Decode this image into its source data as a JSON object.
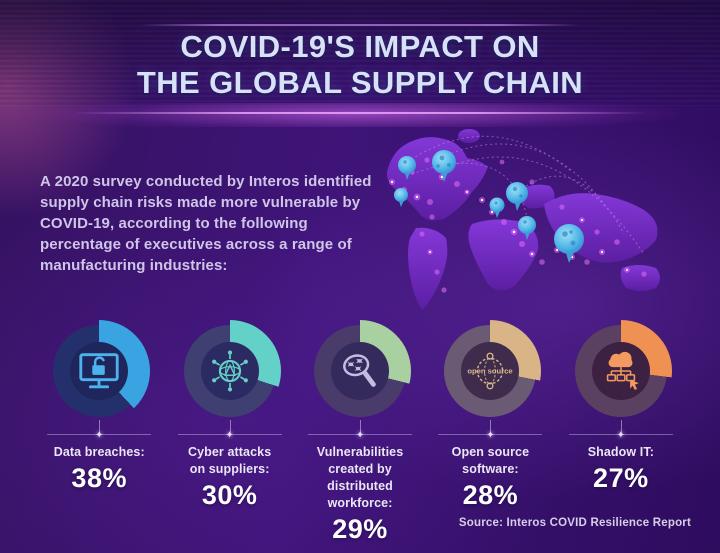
{
  "header": {
    "title_line1": "COVID-19'S IMPACT ON",
    "title_line2": "THE GLOBAL SUPPLY CHAIN"
  },
  "intro": "A 2020 survey conducted by Interos identified supply chain risks made more vulnerable by COVID-19, according to the following percentage of executives across a range of manufacturing industries:",
  "source": "Source: Interos COVID Resilience Report",
  "chart_data": {
    "type": "pie",
    "title": "COVID-19's Impact on the Global Supply Chain",
    "subtitle": "Percentage of executives reporting supply chain risks made more vulnerable by COVID-19 (2020 Interos survey)",
    "categories": [
      "Data breaches",
      "Cyber attacks on suppliers",
      "Vulnerabilities created by distributed workforce",
      "Open source software",
      "Shadow IT"
    ],
    "values": [
      38,
      30,
      29,
      28,
      27
    ],
    "unit": "%",
    "donuts": [
      {
        "label_lines": [
          "Data breaches:"
        ],
        "value": 38,
        "value_label": "38%",
        "icon": "monitor-unlocked-padlock-icon",
        "arc_color": "#3aa3e1",
        "ring_color": "#24306c",
        "hole_color": "#1e265c",
        "icon_color": "#4db3ec"
      },
      {
        "label_lines": [
          "Cyber attacks",
          "on suppliers:"
        ],
        "value": 30,
        "value_label": "30%",
        "icon": "virus-network-icon",
        "arc_color": "#63d1c7",
        "ring_color": "#403f72",
        "hole_color": "#2c2a62",
        "icon_color": "#63d1c6"
      },
      {
        "label_lines": [
          "Vulnerabilities",
          "created by distributed",
          "workforce:"
        ],
        "value": 29,
        "value_label": "29%",
        "icon": "magnifier-bugs-icon",
        "arc_color": "#a8d0a0",
        "ring_color": "#4a3c6a",
        "hole_color": "#342a5c",
        "icon_color": "#c6bce2"
      },
      {
        "label_lines": [
          "Open source",
          "software:"
        ],
        "value": 28,
        "value_label": "28%",
        "icon": "open-source-globe-icon",
        "icon_text": "open source",
        "arc_color": "#d8b487",
        "ring_color": "#6a5a74",
        "hole_color": "#3f2c4c",
        "icon_color": "#dcba8e"
      },
      {
        "label_lines": [
          "Shadow IT:"
        ],
        "value": 27,
        "value_label": "27%",
        "icon": "cloud-network-cursor-icon",
        "arc_color": "#ef9152",
        "ring_color": "#5b4161",
        "hole_color": "#3d2143",
        "icon_color": "#f29a5f"
      }
    ]
  },
  "decor": {
    "spark_glyph": "✦",
    "colors": {
      "background_main": "#3a1472",
      "title_text": "#d7e1f7",
      "intro_text": "#cfc5e8",
      "label_text": "#eae6f4",
      "value_text": "#ffffff",
      "source_text": "#d6cfe8",
      "map_continent": "#7b2fd2",
      "map_glow_dot": "#e36cf7",
      "map_virus_pin": "#4fb6e8"
    }
  }
}
